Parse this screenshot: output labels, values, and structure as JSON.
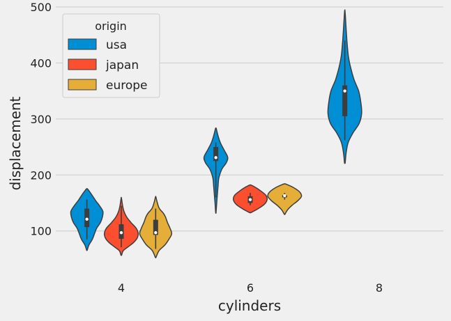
{
  "chart_data": {
    "type": "violin",
    "xlabel": "cylinders",
    "ylabel": "displacement",
    "categories": [
      "4",
      "6",
      "8"
    ],
    "ylim": [
      35,
      500
    ],
    "yticks": [
      100,
      200,
      300,
      400,
      500
    ],
    "grid": true,
    "legend": {
      "title": "origin",
      "placement": "top-left",
      "entries": [
        {
          "name": "usa",
          "color": "#008fd5"
        },
        {
          "name": "japan",
          "color": "#fc4f30"
        },
        {
          "name": "europe",
          "color": "#e5ae38"
        }
      ]
    },
    "series": [
      {
        "name": "usa",
        "color": "#008fd5",
        "violins": [
          {
            "category": "4",
            "min": 66,
            "max": 175,
            "q1": 107,
            "median": 121,
            "q3": 140,
            "whisker_low": 85,
            "whisker_high": 156,
            "profile": [
              [
                66,
                0.02
              ],
              [
                75,
                0.12
              ],
              [
                85,
                0.32
              ],
              [
                95,
                0.45
              ],
              [
                105,
                0.58
              ],
              [
                115,
                0.8
              ],
              [
                125,
                0.92
              ],
              [
                135,
                0.95
              ],
              [
                145,
                0.75
              ],
              [
                155,
                0.5
              ],
              [
                165,
                0.28
              ],
              [
                175,
                0.04
              ]
            ]
          },
          {
            "category": "6",
            "min": 133,
            "max": 283,
            "q1": 225,
            "median": 231,
            "q3": 250,
            "whisker_low": 160,
            "whisker_high": 258,
            "profile": [
              [
                133,
                0.01
              ],
              [
                150,
                0.05
              ],
              [
                165,
                0.09
              ],
              [
                180,
                0.13
              ],
              [
                195,
                0.18
              ],
              [
                210,
                0.35
              ],
              [
                222,
                0.62
              ],
              [
                232,
                0.7
              ],
              [
                245,
                0.48
              ],
              [
                258,
                0.26
              ],
              [
                270,
                0.13
              ],
              [
                283,
                0.02
              ]
            ]
          },
          {
            "category": "8",
            "min": 222,
            "max": 493,
            "q1": 305,
            "median": 350,
            "q3": 360,
            "whisker_low": 262,
            "whisker_high": 440,
            "profile": [
              [
                222,
                0.02
              ],
              [
                240,
                0.08
              ],
              [
                258,
                0.2
              ],
              [
                275,
                0.48
              ],
              [
                292,
                0.85
              ],
              [
                310,
                1.0
              ],
              [
                330,
                0.95
              ],
              [
                350,
                0.82
              ],
              [
                370,
                0.55
              ],
              [
                390,
                0.36
              ],
              [
                410,
                0.22
              ],
              [
                430,
                0.15
              ],
              [
                450,
                0.1
              ],
              [
                470,
                0.06
              ],
              [
                493,
                0.01
              ]
            ]
          }
        ]
      },
      {
        "name": "japan",
        "color": "#fc4f30",
        "violins": [
          {
            "category": "4",
            "min": 57,
            "max": 159,
            "q1": 86,
            "median": 97,
            "q3": 112,
            "whisker_low": 71,
            "whisker_high": 145,
            "profile": [
              [
                57,
                0.02
              ],
              [
                65,
                0.12
              ],
              [
                72,
                0.42
              ],
              [
                80,
                0.75
              ],
              [
                88,
                0.95
              ],
              [
                96,
                1.0
              ],
              [
                105,
                0.88
              ],
              [
                115,
                0.58
              ],
              [
                125,
                0.32
              ],
              [
                135,
                0.16
              ],
              [
                145,
                0.08
              ],
              [
                159,
                0.01
              ]
            ]
          },
          {
            "category": "6",
            "min": 133,
            "max": 182,
            "q1": 150,
            "median": 156,
            "q3": 162,
            "whisker_low": 146,
            "whisker_high": 168,
            "profile": [
              [
                133,
                0.05
              ],
              [
                140,
                0.48
              ],
              [
                148,
                0.85
              ],
              [
                156,
                1.0
              ],
              [
                164,
                0.92
              ],
              [
                172,
                0.6
              ],
              [
                178,
                0.3
              ],
              [
                182,
                0.05
              ]
            ]
          }
        ]
      },
      {
        "name": "europe",
        "color": "#e5ae38",
        "violins": [
          {
            "category": "4",
            "min": 53,
            "max": 161,
            "q1": 93,
            "median": 97,
            "q3": 120,
            "whisker_low": 68,
            "whisker_high": 140,
            "profile": [
              [
                53,
                0.02
              ],
              [
                65,
                0.2
              ],
              [
                75,
                0.55
              ],
              [
                85,
                0.78
              ],
              [
                95,
                0.95
              ],
              [
                105,
                0.85
              ],
              [
                115,
                0.7
              ],
              [
                125,
                0.58
              ],
              [
                132,
                0.45
              ],
              [
                140,
                0.22
              ],
              [
                150,
                0.1
              ],
              [
                161,
                0.01
              ]
            ]
          },
          {
            "category": "6",
            "min": 130,
            "max": 184,
            "q1": 160,
            "median": 163,
            "q3": 164,
            "whisker_low": 156,
            "whisker_high": 168,
            "profile": [
              [
                130,
                0.02
              ],
              [
                138,
                0.18
              ],
              [
                146,
                0.45
              ],
              [
                154,
                0.78
              ],
              [
                162,
                1.0
              ],
              [
                170,
                0.88
              ],
              [
                178,
                0.5
              ],
              [
                184,
                0.06
              ]
            ]
          }
        ]
      }
    ]
  }
}
